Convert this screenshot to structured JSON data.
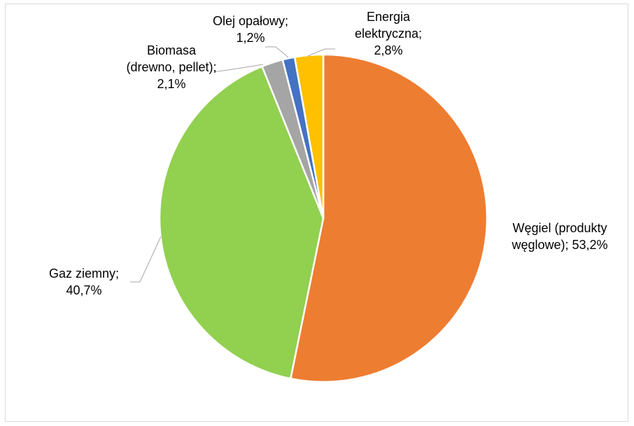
{
  "chart_data": {
    "type": "pie",
    "title": "",
    "start_angle_deg": 0,
    "direction": "clockwise",
    "slices": [
      {
        "name": "Węgiel (produkty węglowe)",
        "value": 53.2,
        "label_lines": [
          "Węgiel (produkty",
          "węglowe); 53,2%"
        ],
        "color": "#ED7D31"
      },
      {
        "name": "Gaz ziemny",
        "value": 40.7,
        "label_lines": [
          "Gaz ziemny;",
          "40,7%"
        ],
        "color": "#92D050"
      },
      {
        "name": "Biomasa (drewno, pellet)",
        "value": 2.1,
        "label_lines": [
          "Biomasa",
          "(drewno, pellet);",
          "2,1%"
        ],
        "color": "#A5A5A5"
      },
      {
        "name": "Olej opałowy",
        "value": 1.2,
        "label_lines": [
          "Olej opałowy;",
          "1,2%"
        ],
        "color": "#4472C4"
      },
      {
        "name": "Energia elektryczna",
        "value": 2.8,
        "label_lines": [
          "Energia",
          "elektryczna;",
          "2,8%"
        ],
        "color": "#FFC000"
      }
    ]
  }
}
